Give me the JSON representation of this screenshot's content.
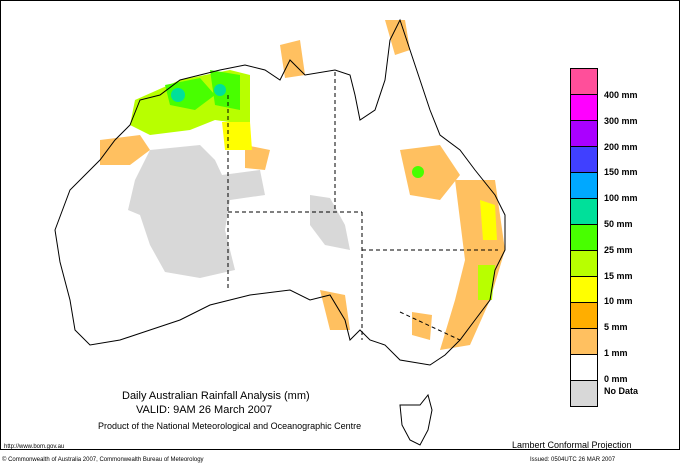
{
  "title": "Daily Australian Rainfall Analysis (mm)",
  "valid": "VALID: 9AM 26 March 2007",
  "product": "Product of the National Meteorological and Oceanographic Centre",
  "url": "http://www.bom.gov.au",
  "projection": "Lambert Conformal Projection",
  "copyright": "© Commonwealth of Australia 2007, Commonwealth Bureau of Meteorology",
  "issued": "Issued: 0504UTC 26 MAR 2007",
  "legend": {
    "colors": [
      "#ff4f9a",
      "#ff00ff",
      "#aa00ff",
      "#4040ff",
      "#00a8ff",
      "#00e09a",
      "#48ff00",
      "#b8ff00",
      "#ffff00",
      "#ffae00",
      "#ffc060",
      "#ffffff",
      "#d8d8d8"
    ],
    "labels": [
      "400 mm",
      "300 mm",
      "200 mm",
      "150 mm",
      "100 mm",
      "50 mm",
      "25 mm",
      "15 mm",
      "10 mm",
      "5 mm",
      "1 mm",
      "0 mm",
      "No Data"
    ]
  }
}
